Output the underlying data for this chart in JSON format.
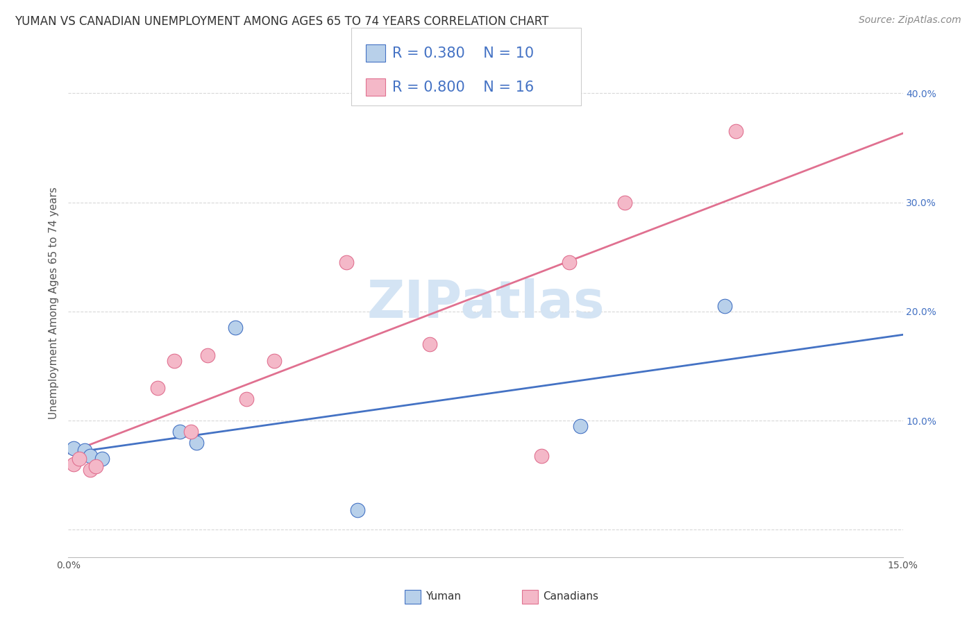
{
  "title": "YUMAN VS CANADIAN UNEMPLOYMENT AMONG AGES 65 TO 74 YEARS CORRELATION CHART",
  "source": "Source: ZipAtlas.com",
  "ylabel": "Unemployment Among Ages 65 to 74 years",
  "xlim": [
    0.0,
    0.15
  ],
  "ylim": [
    -0.025,
    0.44
  ],
  "yticks": [
    0.0,
    0.1,
    0.2,
    0.3,
    0.4
  ],
  "ytick_labels": [
    "",
    "10.0%",
    "20.0%",
    "30.0%",
    "40.0%"
  ],
  "xticks": [
    0.0,
    0.025,
    0.05,
    0.075,
    0.1,
    0.125,
    0.15
  ],
  "xtick_labels": [
    "0.0%",
    "",
    "",
    "",
    "",
    "",
    "15.0%"
  ],
  "bg_color": "#ffffff",
  "grid_color": "#d8d8d8",
  "yuman_face": "#b8d0ea",
  "yuman_edge": "#4472c4",
  "canadian_face": "#f4b8c8",
  "canadian_edge": "#e07090",
  "yuman_line": "#4472c4",
  "canadian_line": "#e07090",
  "watermark": "ZIPatlas",
  "watermark_color": "#d4e4f4",
  "legend_R_y": "R = 0.380",
  "legend_N_y": "N = 10",
  "legend_R_c": "R = 0.800",
  "legend_N_c": "N = 16",
  "legend_yuman": "Yuman",
  "legend_canadian": "Canadians",
  "yuman_x": [
    0.001,
    0.003,
    0.004,
    0.006,
    0.02,
    0.023,
    0.03,
    0.052,
    0.092,
    0.118
  ],
  "yuman_y": [
    0.075,
    0.073,
    0.068,
    0.065,
    0.09,
    0.08,
    0.185,
    0.018,
    0.095,
    0.205
  ],
  "canadian_x": [
    0.001,
    0.002,
    0.004,
    0.005,
    0.016,
    0.019,
    0.022,
    0.025,
    0.032,
    0.037,
    0.05,
    0.065,
    0.085,
    0.09,
    0.1,
    0.12
  ],
  "canadian_y": [
    0.06,
    0.065,
    0.055,
    0.058,
    0.13,
    0.155,
    0.09,
    0.16,
    0.12,
    0.155,
    0.245,
    0.17,
    0.068,
    0.245,
    0.3,
    0.365
  ],
  "title_fontsize": 12,
  "source_fontsize": 10,
  "ylabel_fontsize": 11,
  "tick_fontsize": 10,
  "legend_fontsize": 15,
  "marker_size": 220,
  "line_width": 2.0
}
